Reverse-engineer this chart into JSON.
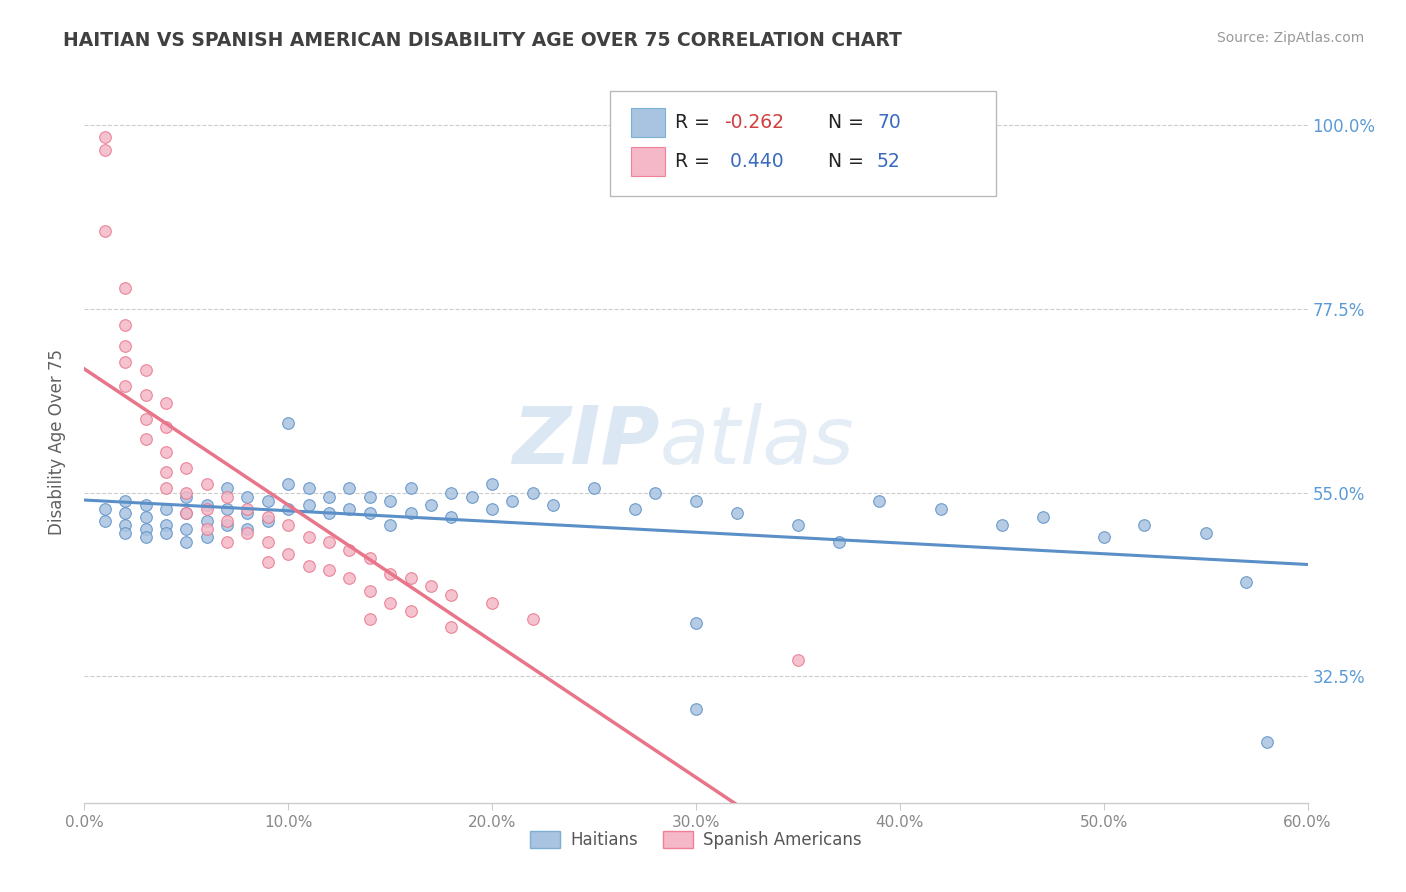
{
  "title": "HAITIAN VS SPANISH AMERICAN DISABILITY AGE OVER 75 CORRELATION CHART",
  "source": "Source: ZipAtlas.com",
  "ylabel": "Disability Age Over 75",
  "color_haitians": "#a8c4e0",
  "color_spanish": "#f4b8c8",
  "color_haitians_line": "#5b8fc7",
  "color_spanish_line": "#e8758a",
  "watermark_zip": "ZIP",
  "watermark_atlas": "atlas",
  "background": "#ffffff",
  "title_color": "#404040",
  "source_color": "#999999",
  "haitians_scatter": [
    [
      0.01,
      0.53
    ],
    [
      0.01,
      0.515
    ],
    [
      0.02,
      0.54
    ],
    [
      0.02,
      0.525
    ],
    [
      0.02,
      0.51
    ],
    [
      0.02,
      0.5
    ],
    [
      0.03,
      0.535
    ],
    [
      0.03,
      0.52
    ],
    [
      0.03,
      0.505
    ],
    [
      0.03,
      0.495
    ],
    [
      0.04,
      0.53
    ],
    [
      0.04,
      0.51
    ],
    [
      0.04,
      0.5
    ],
    [
      0.05,
      0.545
    ],
    [
      0.05,
      0.525
    ],
    [
      0.05,
      0.505
    ],
    [
      0.05,
      0.49
    ],
    [
      0.06,
      0.535
    ],
    [
      0.06,
      0.515
    ],
    [
      0.06,
      0.495
    ],
    [
      0.07,
      0.555
    ],
    [
      0.07,
      0.53
    ],
    [
      0.07,
      0.51
    ],
    [
      0.08,
      0.545
    ],
    [
      0.08,
      0.525
    ],
    [
      0.08,
      0.505
    ],
    [
      0.09,
      0.54
    ],
    [
      0.09,
      0.515
    ],
    [
      0.1,
      0.635
    ],
    [
      0.1,
      0.56
    ],
    [
      0.1,
      0.53
    ],
    [
      0.11,
      0.555
    ],
    [
      0.11,
      0.535
    ],
    [
      0.12,
      0.545
    ],
    [
      0.12,
      0.525
    ],
    [
      0.13,
      0.555
    ],
    [
      0.13,
      0.53
    ],
    [
      0.14,
      0.545
    ],
    [
      0.14,
      0.525
    ],
    [
      0.15,
      0.54
    ],
    [
      0.15,
      0.51
    ],
    [
      0.16,
      0.555
    ],
    [
      0.16,
      0.525
    ],
    [
      0.17,
      0.535
    ],
    [
      0.18,
      0.55
    ],
    [
      0.18,
      0.52
    ],
    [
      0.19,
      0.545
    ],
    [
      0.2,
      0.56
    ],
    [
      0.2,
      0.53
    ],
    [
      0.21,
      0.54
    ],
    [
      0.22,
      0.55
    ],
    [
      0.23,
      0.535
    ],
    [
      0.25,
      0.555
    ],
    [
      0.27,
      0.53
    ],
    [
      0.28,
      0.55
    ],
    [
      0.3,
      0.54
    ],
    [
      0.32,
      0.525
    ],
    [
      0.35,
      0.51
    ],
    [
      0.37,
      0.49
    ],
    [
      0.39,
      0.54
    ],
    [
      0.42,
      0.53
    ],
    [
      0.45,
      0.51
    ],
    [
      0.47,
      0.52
    ],
    [
      0.5,
      0.495
    ],
    [
      0.52,
      0.51
    ],
    [
      0.55,
      0.5
    ],
    [
      0.57,
      0.44
    ],
    [
      0.3,
      0.39
    ],
    [
      0.3,
      0.285
    ],
    [
      0.58,
      0.245
    ]
  ],
  "spanish_scatter": [
    [
      0.01,
      0.985
    ],
    [
      0.01,
      0.97
    ],
    [
      0.01,
      0.87
    ],
    [
      0.02,
      0.8
    ],
    [
      0.02,
      0.755
    ],
    [
      0.02,
      0.73
    ],
    [
      0.02,
      0.71
    ],
    [
      0.02,
      0.68
    ],
    [
      0.03,
      0.7
    ],
    [
      0.03,
      0.67
    ],
    [
      0.03,
      0.64
    ],
    [
      0.03,
      0.615
    ],
    [
      0.04,
      0.66
    ],
    [
      0.04,
      0.63
    ],
    [
      0.04,
      0.6
    ],
    [
      0.04,
      0.575
    ],
    [
      0.04,
      0.555
    ],
    [
      0.05,
      0.58
    ],
    [
      0.05,
      0.55
    ],
    [
      0.05,
      0.525
    ],
    [
      0.06,
      0.56
    ],
    [
      0.06,
      0.53
    ],
    [
      0.06,
      0.505
    ],
    [
      0.07,
      0.545
    ],
    [
      0.07,
      0.515
    ],
    [
      0.07,
      0.49
    ],
    [
      0.08,
      0.53
    ],
    [
      0.08,
      0.5
    ],
    [
      0.09,
      0.52
    ],
    [
      0.09,
      0.49
    ],
    [
      0.09,
      0.465
    ],
    [
      0.1,
      0.51
    ],
    [
      0.1,
      0.475
    ],
    [
      0.11,
      0.495
    ],
    [
      0.11,
      0.46
    ],
    [
      0.12,
      0.49
    ],
    [
      0.12,
      0.455
    ],
    [
      0.13,
      0.48
    ],
    [
      0.13,
      0.445
    ],
    [
      0.14,
      0.47
    ],
    [
      0.14,
      0.43
    ],
    [
      0.14,
      0.395
    ],
    [
      0.15,
      0.45
    ],
    [
      0.15,
      0.415
    ],
    [
      0.16,
      0.445
    ],
    [
      0.16,
      0.405
    ],
    [
      0.17,
      0.435
    ],
    [
      0.18,
      0.425
    ],
    [
      0.18,
      0.385
    ],
    [
      0.2,
      0.415
    ],
    [
      0.22,
      0.395
    ],
    [
      0.35,
      0.345
    ]
  ],
  "xlim": [
    0.0,
    0.6
  ],
  "ylim": [
    0.17,
    1.055
  ],
  "y_tick_vals": [
    0.325,
    0.55,
    0.775,
    1.0
  ],
  "y_tick_labels": [
    "32.5%",
    "55.0%",
    "77.5%",
    "100.0%"
  ],
  "x_tick_vals": [
    0.0,
    0.1,
    0.2,
    0.3,
    0.4,
    0.5,
    0.6
  ],
  "x_tick_labels": [
    "0.0%",
    "10.0%",
    "20.0%",
    "30.0%",
    "40.0%",
    "50.0%",
    "60.0%"
  ]
}
